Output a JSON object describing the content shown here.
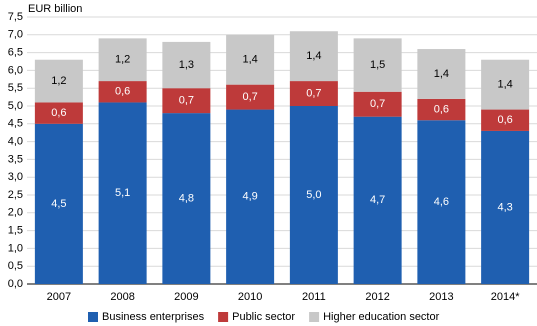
{
  "chart_data": {
    "type": "stacked_bar",
    "y_axis_label": "EUR billion",
    "categories": [
      "2007",
      "2008",
      "2009",
      "2010",
      "2011",
      "2012",
      "2013",
      "2014*"
    ],
    "series": [
      {
        "name": "Business enterprises",
        "color": "#1f5fb0",
        "values": [
          4.5,
          5.1,
          4.8,
          4.9,
          5.0,
          4.7,
          4.6,
          4.3
        ],
        "value_labels": [
          "4,5",
          "5,1",
          "4,8",
          "4,9",
          "5,0",
          "4,7",
          "4,6",
          "4,3"
        ]
      },
      {
        "name": "Public sector",
        "color": "#be3a3a",
        "values": [
          0.6,
          0.6,
          0.7,
          0.7,
          0.7,
          0.7,
          0.6,
          0.6
        ],
        "value_labels": [
          "0,6",
          "0,6",
          "0,7",
          "0,7",
          "0,7",
          "0,7",
          "0,6",
          "0,6"
        ]
      },
      {
        "name": "Higher education sector",
        "color": "#c8c8c8",
        "values": [
          1.2,
          1.2,
          1.3,
          1.4,
          1.4,
          1.5,
          1.4,
          1.4
        ],
        "value_labels": [
          "1,2",
          "1,2",
          "1,3",
          "1,4",
          "1,4",
          "1,5",
          "1,4",
          "1,4"
        ]
      }
    ],
    "ylim": [
      0,
      7.5
    ],
    "yticks": [
      {
        "value": 0,
        "label": "0,0"
      },
      {
        "value": 0.5,
        "label": "0,5"
      },
      {
        "value": 1,
        "label": "1,0"
      },
      {
        "value": 1.5,
        "label": "1,5"
      },
      {
        "value": 2,
        "label": "2,0"
      },
      {
        "value": 2.5,
        "label": "2,5"
      },
      {
        "value": 3,
        "label": "3,0"
      },
      {
        "value": 3.5,
        "label": "3,5"
      },
      {
        "value": 4,
        "label": "4,0"
      },
      {
        "value": 4.5,
        "label": "4,5"
      },
      {
        "value": 5,
        "label": "5,0"
      },
      {
        "value": 5.5,
        "label": "5,5"
      },
      {
        "value": 6,
        "label": "6,0"
      },
      {
        "value": 6.5,
        "label": "6,5"
      },
      {
        "value": 7,
        "label": "7,0"
      },
      {
        "value": 7.5,
        "label": "7,5"
      }
    ],
    "grid": true,
    "legend": "bottom"
  }
}
